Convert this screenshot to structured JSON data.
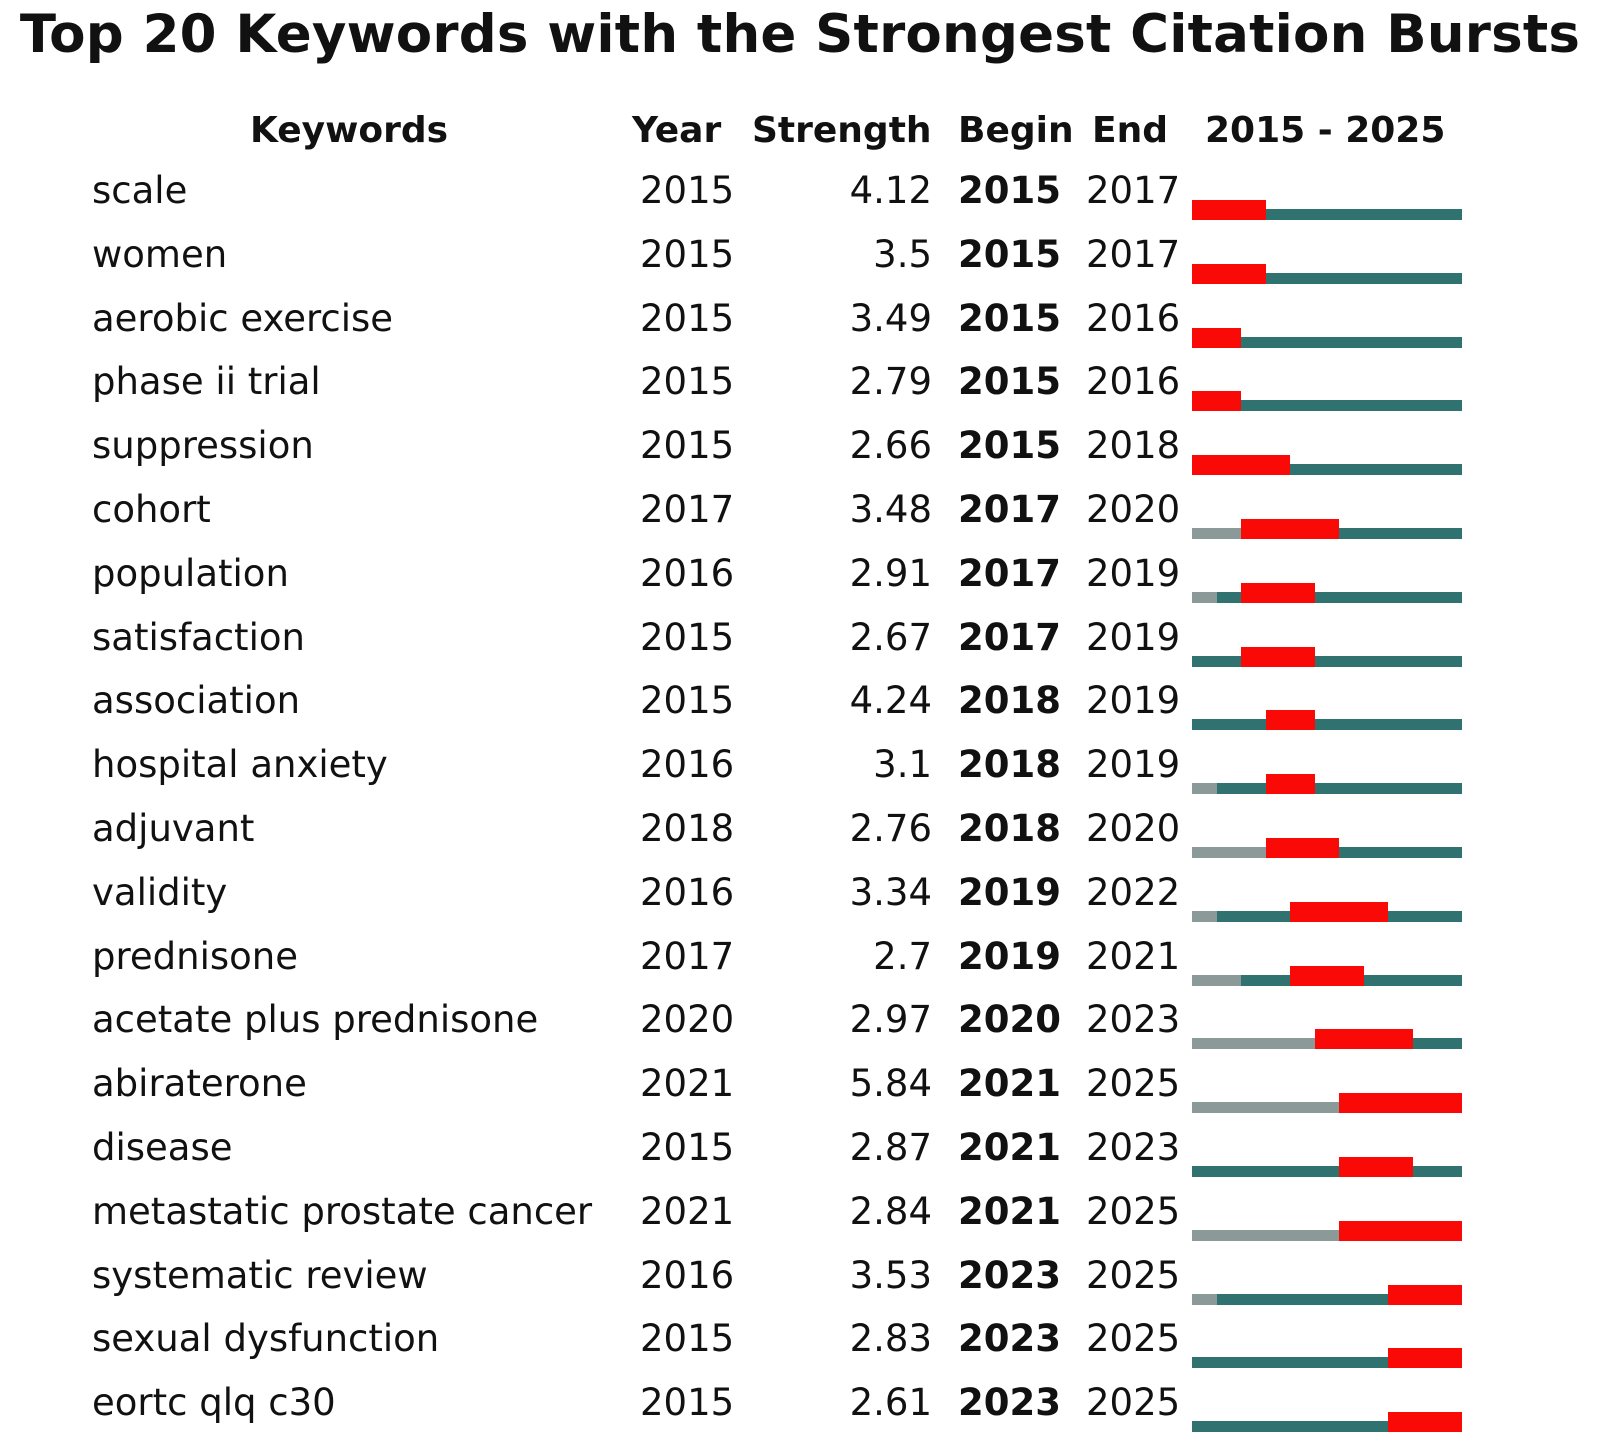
{
  "title": "Top 20 Keywords with the Strongest Citation Bursts",
  "headers": {
    "keywords": "Keywords",
    "year": "Year",
    "strength": "Strength",
    "begin": "Begin",
    "end": "End",
    "range": "2015 - 2025"
  },
  "colors": {
    "burst": "#f90a06",
    "active": "#2f7270",
    "inactive": "#8b9a98"
  },
  "chart_data": {
    "type": "table",
    "title": "Top 20 Keywords with the Strongest Citation Bursts",
    "timeline_range": [
      2015,
      2025
    ],
    "columns": [
      "Keywords",
      "Year",
      "Strength",
      "Begin",
      "End",
      "2015 - 2025"
    ],
    "rows": [
      {
        "keyword": "scale",
        "year": "2015",
        "strength": "4.12",
        "begin": "2015",
        "end": "2017"
      },
      {
        "keyword": "women",
        "year": "2015",
        "strength": "3.5",
        "begin": "2015",
        "end": "2017"
      },
      {
        "keyword": "aerobic exercise",
        "year": "2015",
        "strength": "3.49",
        "begin": "2015",
        "end": "2016"
      },
      {
        "keyword": "phase ii trial",
        "year": "2015",
        "strength": "2.79",
        "begin": "2015",
        "end": "2016"
      },
      {
        "keyword": "suppression",
        "year": "2015",
        "strength": "2.66",
        "begin": "2015",
        "end": "2018"
      },
      {
        "keyword": "cohort",
        "year": "2017",
        "strength": "3.48",
        "begin": "2017",
        "end": "2020"
      },
      {
        "keyword": "population",
        "year": "2016",
        "strength": "2.91",
        "begin": "2017",
        "end": "2019"
      },
      {
        "keyword": "satisfaction",
        "year": "2015",
        "strength": "2.67",
        "begin": "2017",
        "end": "2019"
      },
      {
        "keyword": "association",
        "year": "2015",
        "strength": "4.24",
        "begin": "2018",
        "end": "2019"
      },
      {
        "keyword": "hospital anxiety",
        "year": "2016",
        "strength": "3.1",
        "begin": "2018",
        "end": "2019"
      },
      {
        "keyword": "adjuvant",
        "year": "2018",
        "strength": "2.76",
        "begin": "2018",
        "end": "2020"
      },
      {
        "keyword": "validity",
        "year": "2016",
        "strength": "3.34",
        "begin": "2019",
        "end": "2022"
      },
      {
        "keyword": "prednisone",
        "year": "2017",
        "strength": "2.7",
        "begin": "2019",
        "end": "2021"
      },
      {
        "keyword": "acetate plus prednisone",
        "year": "2020",
        "strength": "2.97",
        "begin": "2020",
        "end": "2023"
      },
      {
        "keyword": "abiraterone",
        "year": "2021",
        "strength": "5.84",
        "begin": "2021",
        "end": "2025"
      },
      {
        "keyword": "disease",
        "year": "2015",
        "strength": "2.87",
        "begin": "2021",
        "end": "2023"
      },
      {
        "keyword": "metastatic prostate cancer",
        "year": "2021",
        "strength": "2.84",
        "begin": "2021",
        "end": "2025"
      },
      {
        "keyword": "systematic review",
        "year": "2016",
        "strength": "3.53",
        "begin": "2023",
        "end": "2025"
      },
      {
        "keyword": "sexual dysfunction",
        "year": "2015",
        "strength": "2.83",
        "begin": "2023",
        "end": "2025"
      },
      {
        "keyword": "eortc qlq c30",
        "year": "2015",
        "strength": "2.61",
        "begin": "2023",
        "end": "2025"
      }
    ]
  }
}
